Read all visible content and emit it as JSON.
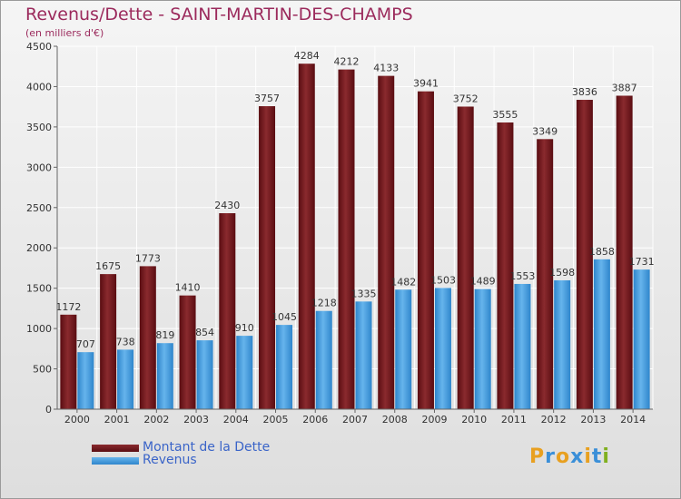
{
  "header": {
    "title": "Revenus/Dette - SAINT-MARTIN-DES-CHAMPS",
    "subtitle": "(en milliers d'€)"
  },
  "legend": {
    "dette_label": "Montant de la Dette",
    "revenus_label": "Revenus"
  },
  "logo": {
    "letters": [
      "P",
      "r",
      "o",
      "x",
      "i",
      "t",
      "i"
    ],
    "colors": [
      "#e8a020",
      "#3a8fd8",
      "#e8a020",
      "#3a8fd8",
      "#e8a020",
      "#3a8fd8",
      "#80b020"
    ]
  },
  "colors": {
    "dette": "#7d1e22",
    "revenus": "#4ea2e0"
  },
  "chart_data": {
    "type": "bar",
    "title": "Revenus/Dette - SAINT-MARTIN-DES-CHAMPS",
    "subtitle": "(en milliers d'€)",
    "categories": [
      "2000",
      "2001",
      "2002",
      "2003",
      "2004",
      "2005",
      "2006",
      "2007",
      "2008",
      "2009",
      "2010",
      "2011",
      "2012",
      "2013",
      "2014"
    ],
    "series": [
      {
        "name": "Montant de la Dette",
        "values": [
          1172,
          1675,
          1773,
          1410,
          2430,
          3757,
          4284,
          4212,
          4133,
          3941,
          3752,
          3555,
          3349,
          3836,
          3887
        ]
      },
      {
        "name": "Revenus",
        "values": [
          707,
          738,
          819,
          854,
          910,
          1045,
          1218,
          1335,
          1482,
          1503,
          1489,
          1553,
          1598,
          1858,
          1731
        ]
      }
    ],
    "yticks": [
      0,
      500,
      1000,
      1500,
      2000,
      2500,
      3000,
      3500,
      4000,
      4500
    ],
    "ylim": [
      0,
      4500
    ],
    "grid": true,
    "legend_position": "bottom-left"
  }
}
